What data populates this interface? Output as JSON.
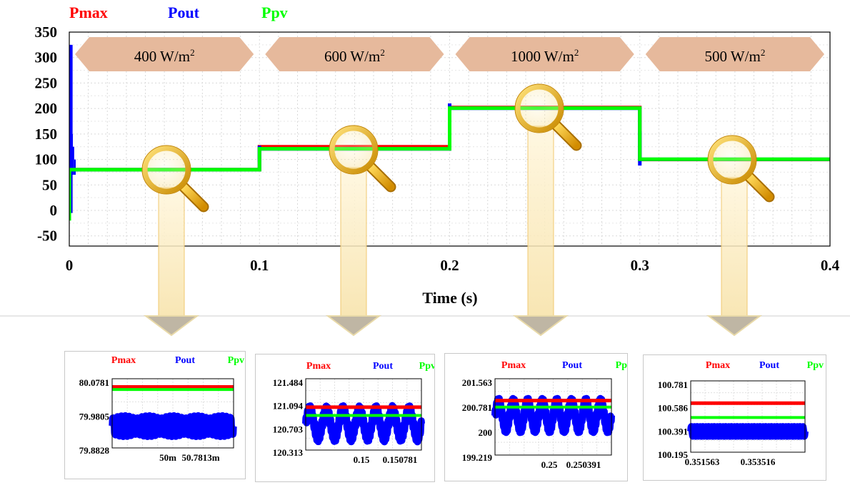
{
  "legend": [
    {
      "name": "Pmax",
      "color": "#ff0000"
    },
    {
      "name": "Pout",
      "color": "#0000ff"
    },
    {
      "name": "Ppv",
      "color": "#00ff00"
    }
  ],
  "chart_data": [
    {
      "type": "line",
      "xlabel": "Time (s)",
      "ylabel": "",
      "xlim": [
        0,
        0.4
      ],
      "ylim": [
        -70,
        350
      ],
      "x_ticks": [
        0,
        0.1,
        0.2,
        0.3,
        0.4
      ],
      "x_tick_labels": [
        "0",
        "0.1",
        "0.2",
        "0.3",
        "0.4"
      ],
      "y_ticks": [
        350,
        300,
        250,
        200,
        150,
        100,
        50,
        0,
        -50
      ],
      "y_tick_labels": [
        "350",
        "300",
        "250",
        "200",
        "150",
        "100",
        "50",
        "0",
        "-50"
      ],
      "grid": true,
      "annotations": [
        {
          "x_start": 0.0,
          "x_end": 0.1,
          "base": "400 W/m",
          "sup": "2"
        },
        {
          "x_start": 0.1,
          "x_end": 0.2,
          "base": "600 W/m",
          "sup": "2"
        },
        {
          "x_start": 0.2,
          "x_end": 0.3,
          "base": "1000 W/m",
          "sup": "2"
        },
        {
          "x_start": 0.3,
          "x_end": 0.4,
          "base": "500 W/m",
          "sup": "2"
        }
      ],
      "series": [
        {
          "name": "Pmax",
          "color": "#ff0000",
          "x": [
            0,
            0.1,
            0.1,
            0.2,
            0.2,
            0.3,
            0.3,
            0.4
          ],
          "y": [
            80,
            80,
            125,
            125,
            202,
            202,
            100,
            100
          ]
        },
        {
          "name": "Pout",
          "color": "#0000ff",
          "x": [
            0,
            0.1,
            0.1,
            0.2,
            0.2,
            0.3,
            0.3,
            0.4
          ],
          "y": [
            79.9,
            79.9,
            120.8,
            120.8,
            200.5,
            200.5,
            100.3,
            100.3
          ],
          "spikes": [
            {
              "x": 0.0008,
              "y_min": -5,
              "y_max": 325
            },
            {
              "x": 0.1,
              "y_min": 95,
              "y_max": 127
            },
            {
              "x": 0.2,
              "y_min": 120,
              "y_max": 210
            },
            {
              "x": 0.3,
              "y_min": 88,
              "y_max": 155
            }
          ]
        },
        {
          "name": "Ppv",
          "color": "#00ff00",
          "x": [
            0,
            0.1,
            0.1,
            0.2,
            0.2,
            0.3,
            0.3,
            0.4
          ],
          "y": [
            80,
            80,
            120.9,
            120.9,
            200.7,
            200.7,
            100.45,
            100.45
          ]
        }
      ]
    },
    {
      "type": "line",
      "x_tick_labels": [
        "50m",
        "50.7813m"
      ],
      "y_tick_labels": [
        "80.0781",
        "79.9805",
        "79.8828"
      ],
      "ylim": [
        79.84,
        80.11
      ],
      "series": [
        {
          "name": "Pmax",
          "color": "#ff0000",
          "y": 80.0781
        },
        {
          "name": "Ppv",
          "color": "#00ff00",
          "y": 80.068
        },
        {
          "name": "Pout",
          "color": "#0000ff",
          "center": 79.925,
          "amplitude": 0.03,
          "cycles": 30
        }
      ]
    },
    {
      "type": "line",
      "x_tick_labels": [
        "0.15",
        "0.150781"
      ],
      "y_tick_labels": [
        "121.484",
        "121.094",
        "120.703",
        "120.313"
      ],
      "ylim": [
        120.22,
        121.6
      ],
      "series": [
        {
          "name": "Pmax",
          "color": "#ff0000",
          "y": 121.05
        },
        {
          "name": "Ppv",
          "color": "#00ff00",
          "y": 120.89
        },
        {
          "name": "Pout",
          "color": "#0000ff",
          "center": 120.73,
          "amplitude": 0.26,
          "cycles": 7
        }
      ]
    },
    {
      "type": "line",
      "x_tick_labels": [
        "0.25",
        "0.250391"
      ],
      "y_tick_labels": [
        "201.563",
        "200.781",
        "200",
        "199.219"
      ],
      "ylim": [
        199.0,
        201.8
      ],
      "series": [
        {
          "name": "Pmax",
          "color": "#ff0000",
          "y": 201.0
        },
        {
          "name": "Ppv",
          "color": "#00ff00",
          "y": 200.76
        },
        {
          "name": "Pout",
          "color": "#0000ff",
          "center": 200.45,
          "amplitude": 0.48,
          "cycles": 8
        }
      ]
    },
    {
      "type": "line",
      "x_tick_labels": [
        "0.351563",
        "0.353516"
      ],
      "y_tick_labels": [
        "100.781",
        "100.586",
        "100.391",
        "100.195"
      ],
      "ylim": [
        100.13,
        100.85
      ],
      "series": [
        {
          "name": "Pmax",
          "color": "#ff0000",
          "y": 100.625
        },
        {
          "name": "Ppv",
          "color": "#00ff00",
          "y": 100.48
        },
        {
          "name": "Pout",
          "color": "#0000ff",
          "center": 100.34,
          "amplitude": 0.075,
          "cycles": 40
        }
      ]
    }
  ]
}
